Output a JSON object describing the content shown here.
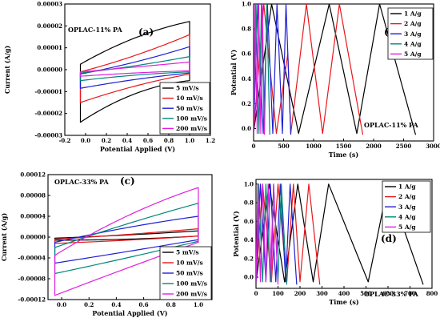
{
  "chart_data": [
    {
      "panel": "(a)",
      "type": "line",
      "title": "OPLAC-11% PA",
      "xlabel": "Potential Applied (V)",
      "ylabel": "Current (A/g)",
      "xlim": [
        -0.2,
        1.2
      ],
      "ylim": [
        -3e-05,
        3e-05
      ],
      "xticks": [
        -0.2,
        0.0,
        0.2,
        0.4,
        0.6,
        0.8,
        1.0,
        1.2
      ],
      "xtick_labels": [
        "-0.2",
        "0.0",
        "0.2",
        "0.4",
        "0.6",
        "0.8",
        "1.0",
        "1.2"
      ],
      "yticks": [
        -3e-05,
        -2e-05,
        -1e-05,
        0,
        1e-05,
        2e-05,
        3e-05
      ],
      "ytick_labels": [
        "-0.00003",
        "-0.00002",
        "-0.00001",
        "0.00000",
        "0.00001",
        "0.00002",
        "0.00003"
      ],
      "legend_position": "bottom-right",
      "series": [
        {
          "name": "5 mV/s",
          "color": "#000000",
          "x_range": [
            -0.05,
            1.0
          ],
          "upper": [
            2.5e-06,
            1.45e-05,
            2.2e-05
          ],
          "lower": [
            -2.4e-05,
            -1.1e-05,
            -5e-06
          ]
        },
        {
          "name": "10 mV/s",
          "color": "#e8171c",
          "x_range": [
            -0.05,
            1.0
          ],
          "upper": [
            -1e-06,
            6.5e-06,
            1.6e-05
          ],
          "lower": [
            -1.5e-05,
            -7.5e-06,
            -2e-06
          ]
        },
        {
          "name": "50 mV/s",
          "color": "#1f1fd6",
          "x_range": [
            -0.05,
            1.0
          ],
          "upper": [
            -2e-06,
            3.5e-06,
            1.05e-05
          ],
          "lower": [
            -8.5e-06,
            -4.5e-06,
            -1.5e-06
          ]
        },
        {
          "name": "100 mV/s",
          "color": "#00877a",
          "x_range": [
            -0.05,
            1.0
          ],
          "upper": [
            -1.5e-06,
            1.8e-06,
            6e-06
          ],
          "lower": [
            -5e-06,
            -2.5e-06,
            -1e-06
          ]
        },
        {
          "name": "200 mV/s",
          "color": "#e01ee0",
          "x_range": [
            -0.05,
            1.0
          ],
          "upper": [
            -1e-06,
            1.2e-06,
            3.5e-06
          ],
          "lower": [
            -3e-06,
            -1.5e-06,
            -5e-07
          ]
        }
      ]
    },
    {
      "panel": "(b)",
      "type": "line",
      "title": "OPLAC-11% PA",
      "xlabel": "Time (s)",
      "ylabel": "Potential (V)",
      "xlim": [
        0,
        3000
      ],
      "ylim": [
        -0.1,
        1.0
      ],
      "xticks": [
        0,
        500,
        1000,
        1500,
        2000,
        2500,
        3000
      ],
      "xtick_labels": [
        "0",
        "500",
        "1000",
        "1500",
        "2000",
        "2500",
        "3000"
      ],
      "yticks": [
        0.0,
        0.2,
        0.4,
        0.6,
        0.8,
        1.0
      ],
      "ytick_labels": [
        "0.0",
        "0.2",
        "0.4",
        "0.6",
        "0.8",
        "1.0"
      ],
      "legend_position": "top-right",
      "series": [
        {
          "name": "1 A/g",
          "color": "#000000",
          "points": [
            [
              0,
              -0.03
            ],
            [
              300,
              1.0
            ],
            [
              750,
              -0.04
            ],
            [
              1260,
              1.0
            ],
            [
              1720,
              -0.04
            ],
            [
              2100,
              1.0
            ],
            [
              2700,
              -0.05
            ]
          ]
        },
        {
          "name": "2 A/g",
          "color": "#e8171c",
          "points": [
            [
              0,
              -0.03
            ],
            [
              170,
              1.0
            ],
            [
              380,
              -0.04
            ],
            [
              570,
              0.6
            ],
            [
              620,
              -0.04
            ],
            [
              880,
              1.0
            ],
            [
              1150,
              -0.04
            ],
            [
              1430,
              1.0
            ],
            [
              1820,
              -0.05
            ]
          ]
        },
        {
          "name": "3 A/g",
          "color": "#1f1fd6",
          "points": [
            [
              0,
              -0.03
            ],
            [
              70,
              1.0
            ],
            [
              160,
              -0.04
            ],
            [
              230,
              1.0
            ],
            [
              320,
              -0.04
            ],
            [
              390,
              1.0
            ],
            [
              480,
              -0.04
            ],
            [
              540,
              1.0
            ],
            [
              620,
              -0.05
            ]
          ]
        },
        {
          "name": "4 A/g",
          "color": "#00877a",
          "points": [
            [
              0,
              -0.03
            ],
            [
              40,
              1.0
            ],
            [
              90,
              -0.04
            ],
            [
              130,
              1.0
            ],
            [
              180,
              -0.04
            ],
            [
              220,
              1.0
            ],
            [
              270,
              -0.05
            ]
          ]
        },
        {
          "name": "5 A/g",
          "color": "#e01ee0",
          "points": [
            [
              0,
              -0.03
            ],
            [
              25,
              1.0
            ],
            [
              60,
              -0.04
            ],
            [
              85,
              1.0
            ],
            [
              120,
              -0.04
            ],
            [
              145,
              1.0
            ],
            [
              180,
              -0.05
            ]
          ]
        }
      ]
    },
    {
      "panel": "(c)",
      "type": "line",
      "title": "OPLAC-33% PA",
      "xlabel": "Potential Applied (V)",
      "ylabel": "Current (A/g)",
      "xlim": [
        -0.1,
        1.1
      ],
      "ylim": [
        -0.00012,
        0.00012
      ],
      "xticks": [
        0.0,
        0.2,
        0.4,
        0.6,
        0.8,
        1.0
      ],
      "xtick_labels": [
        "0.0",
        "0.2",
        "0.4",
        "0.6",
        "0.8",
        "1.0"
      ],
      "yticks": [
        -0.00012,
        -8e-05,
        -4e-05,
        0,
        4e-05,
        8e-05,
        0.00012
      ],
      "ytick_labels": [
        "-0.00012",
        "-0.00008",
        "-0.00004",
        "0.00000",
        "0.00004",
        "0.00008",
        "0.00012"
      ],
      "legend_position": "bottom-right",
      "series": [
        {
          "name": "5 mV/s",
          "color": "#000000",
          "x_range": [
            -0.05,
            1.0
          ],
          "upper": [
            -2e-06,
            4e-06,
            1.2e-05
          ],
          "lower": [
            -6e-06,
            -4e-06,
            2e-06
          ]
        },
        {
          "name": "10 mV/s",
          "color": "#e8171c",
          "x_range": [
            -0.05,
            1.0
          ],
          "upper": [
            -4e-06,
            5e-06,
            1.6e-05
          ],
          "lower": [
            -1.2e-05,
            -6e-06,
            2e-06
          ]
        },
        {
          "name": "50 mV/s",
          "color": "#1f1fd6",
          "x_range": [
            -0.05,
            1.0
          ],
          "upper": [
            -1e-05,
            1.8e-05,
            4e-05
          ],
          "lower": [
            -5e-05,
            -2.8e-05,
            -5e-06
          ]
        },
        {
          "name": "100 mV/s",
          "color": "#00877a",
          "x_range": [
            -0.05,
            1.0
          ],
          "upper": [
            -2e-05,
            2.5e-05,
            6.5e-05
          ],
          "lower": [
            -7e-05,
            -4e-05,
            -8e-06
          ]
        },
        {
          "name": "200 mV/s",
          "color": "#e01ee0",
          "x_range": [
            -0.05,
            1.0
          ],
          "upper": [
            -3.5e-05,
            4e-05,
            9.5e-05
          ],
          "lower": [
            -0.000112,
            -6e-05,
            -1e-05
          ]
        }
      ]
    },
    {
      "panel": "(d)",
      "type": "line",
      "title": "OPLAC-33% PA",
      "xlabel": "Time (s)",
      "ylabel": "Potential (V)",
      "xlim": [
        0,
        800
      ],
      "ylim": [
        -0.12,
        1.05
      ],
      "xticks": [
        0,
        100,
        200,
        300,
        400,
        500,
        600,
        700,
        800
      ],
      "xtick_labels": [
        "0",
        "100",
        "200",
        "300",
        "400",
        "500",
        "600",
        "700",
        "800"
      ],
      "yticks": [
        0.0,
        0.2,
        0.4,
        0.6,
        0.8,
        1.0
      ],
      "ytick_labels": [
        "0.0",
        "0.2",
        "0.4",
        "0.6",
        "0.8",
        "1.0"
      ],
      "legend_position": "top-right",
      "series": [
        {
          "name": "1 A/g",
          "color": "#000000",
          "points": [
            [
              0,
              -0.05
            ],
            [
              60,
              1.0
            ],
            [
              130,
              -0.05
            ],
            [
              190,
              1.0
            ],
            [
              260,
              -0.05
            ],
            [
              330,
              1.0
            ],
            [
              510,
              -0.05
            ],
            [
              600,
              1.0
            ],
            [
              760,
              -0.08
            ]
          ]
        },
        {
          "name": "2 A/g",
          "color": "#e8171c",
          "points": [
            [
              0,
              -0.05
            ],
            [
              30,
              1.0
            ],
            [
              70,
              -0.05
            ],
            [
              100,
              1.0
            ],
            [
              140,
              -0.05
            ],
            [
              170,
              1.0
            ],
            [
              200,
              -0.05
            ],
            [
              240,
              1.0
            ],
            [
              290,
              -0.08
            ]
          ]
        },
        {
          "name": "3 A/g",
          "color": "#1f1fd6",
          "points": [
            [
              0,
              -0.05
            ],
            [
              20,
              1.0
            ],
            [
              45,
              -0.05
            ],
            [
              65,
              1.0
            ],
            [
              90,
              -0.05
            ],
            [
              110,
              1.0
            ],
            [
              135,
              -0.05
            ],
            [
              155,
              1.0
            ],
            [
              185,
              -0.08
            ]
          ]
        },
        {
          "name": "4 A/g",
          "color": "#00877a",
          "points": [
            [
              0,
              -0.05
            ],
            [
              12,
              1.0
            ],
            [
              30,
              -0.05
            ],
            [
              45,
              1.0
            ],
            [
              65,
              -0.05
            ],
            [
              80,
              1.0
            ],
            [
              100,
              -0.05
            ],
            [
              115,
              1.0
            ],
            [
              140,
              -0.08
            ]
          ]
        },
        {
          "name": "5 A/g",
          "color": "#e01ee0",
          "points": [
            [
              0,
              -0.05
            ],
            [
              8,
              1.0
            ],
            [
              20,
              -0.05
            ],
            [
              30,
              1.0
            ],
            [
              45,
              -0.05
            ],
            [
              55,
              1.0
            ],
            [
              70,
              -0.05
            ],
            [
              80,
              1.0
            ],
            [
              100,
              -0.08
            ]
          ]
        }
      ]
    }
  ]
}
